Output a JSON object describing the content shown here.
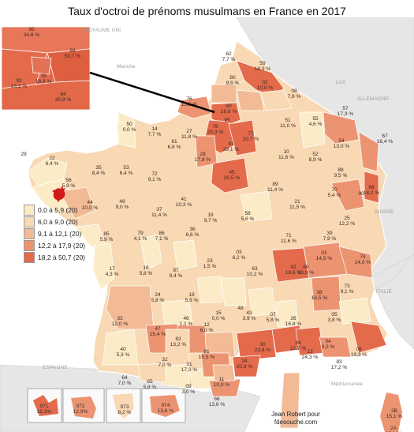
{
  "title": "Taux d'octroi de prénoms musulmans en France en 2017",
  "legend": {
    "items": [
      {
        "label": "0,0 à 5,9 (20)",
        "color": "#fbecc7"
      },
      {
        "label": "6,0 à 9,0 (20)",
        "color": "#f8d9b4"
      },
      {
        "label": "9,1 à 12,1 (20)",
        "color": "#f2bb96"
      },
      {
        "label": "12,2 à 17,9 (20)",
        "color": "#ec9472"
      },
      {
        "label": "18,2 à 50,7 (20)",
        "color": "#e36a4b"
      }
    ]
  },
  "geo_labels": [
    "ROYAUME UNI",
    "Manche",
    "LUX",
    "ALLEMAGNE",
    "SUISSE",
    "ITALIE",
    "ESPAGNE",
    "Méditerranée"
  ],
  "credit": {
    "line1": "Jean Robert pour",
    "line2": "fdesouche.com"
  },
  "departments": [
    {
      "code": "93",
      "val": "50,7 %",
      "cls": 5
    },
    {
      "code": "95",
      "val": "34,6 %",
      "cls": 5
    },
    {
      "code": "92",
      "val": "23,2 %",
      "cls": 5
    },
    {
      "code": "75",
      "val": "18,9 %",
      "cls": 5
    },
    {
      "code": "94",
      "val": "30,9 %",
      "cls": 5
    },
    {
      "code": "62",
      "val": "7,7 %",
      "cls": 2
    },
    {
      "code": "59",
      "val": "18,3 %",
      "cls": 5
    },
    {
      "code": "80",
      "val": "9,5 %",
      "cls": 3
    },
    {
      "code": "02",
      "val": "10,0 %",
      "cls": 3
    },
    {
      "code": "08",
      "val": "7,9 %",
      "cls": 2
    },
    {
      "code": "76",
      "val": "15,5 %",
      "cls": 4
    },
    {
      "code": "60",
      "val": "18,6 %",
      "cls": 5
    },
    {
      "code": "57",
      "val": "17,3 %",
      "cls": 4
    },
    {
      "code": "50",
      "val": "0,0 %",
      "cls": 1
    },
    {
      "code": "14",
      "val": "7,7 %",
      "cls": 2
    },
    {
      "code": "27",
      "val": "11,8 %",
      "cls": 3
    },
    {
      "code": "78",
      "val": "23,3 %",
      "cls": 5
    },
    {
      "code": "95b",
      "val": "",
      "cls": 5
    },
    {
      "code": "77",
      "val": "20,7 %",
      "cls": 5
    },
    {
      "code": "51",
      "val": "11,0 %",
      "cls": 3
    },
    {
      "code": "55",
      "val": "4,6 %",
      "cls": 1
    },
    {
      "code": "54",
      "val": "13,0 %",
      "cls": 4
    },
    {
      "code": "67",
      "val": "16,4 %",
      "cls": 4
    },
    {
      "code": "29",
      "val": "",
      "cls": 1
    },
    {
      "code": "22",
      "val": "6,4 %",
      "cls": 2
    },
    {
      "code": "61",
      "val": "6,8 %",
      "cls": 2
    },
    {
      "code": "28",
      "val": "17,9 %",
      "cls": 4
    },
    {
      "code": "91",
      "val": "29,1 %",
      "cls": 5
    },
    {
      "code": "10",
      "val": "11,6 %",
      "cls": 3
    },
    {
      "code": "52",
      "val": "8,9 %",
      "cls": 2
    },
    {
      "code": "88",
      "val": "9,5 %",
      "cls": 3
    },
    {
      "code": "56",
      "val": "5,9 %",
      "cls": 1
    },
    {
      "code": "35",
      "val": "8,4 %",
      "cls": 2
    },
    {
      "code": "53",
      "val": "6,4 %",
      "cls": 2
    },
    {
      "code": "72",
      "val": "9,1 %",
      "cls": 3
    },
    {
      "code": "45",
      "val": "20,5 %",
      "cls": 5
    },
    {
      "code": "89",
      "val": "11,4 %",
      "cls": 3
    },
    {
      "code": "70",
      "val": "5,4 %",
      "cls": 1
    },
    {
      "code": "68",
      "val": "18,2 %",
      "cls": 5
    },
    {
      "code": "44",
      "val": "10,0 %",
      "cls": 3
    },
    {
      "code": "49",
      "val": "9,0 %",
      "cls": 2
    },
    {
      "code": "37",
      "val": "11,4 %",
      "cls": 3
    },
    {
      "code": "41",
      "val": "10,3 %",
      "cls": 3
    },
    {
      "code": "18",
      "val": "9,7 %",
      "cls": 3
    },
    {
      "code": "58",
      "val": "5,6 %",
      "cls": 1
    },
    {
      "code": "21",
      "val": "11,5 %",
      "cls": 3
    },
    {
      "code": "25",
      "val": "12,2 %",
      "cls": 4
    },
    {
      "code": "90",
      "val": "",
      "cls": 4
    },
    {
      "code": "85",
      "val": "5,9 %",
      "cls": 1
    },
    {
      "code": "79",
      "val": "4,1 %",
      "cls": 1
    },
    {
      "code": "86",
      "val": "7,1 %",
      "cls": 2
    },
    {
      "code": "36",
      "val": "6,6 %",
      "cls": 2
    },
    {
      "code": "71",
      "val": "11,6 %",
      "cls": 3
    },
    {
      "code": "39",
      "val": "7,9 %",
      "cls": 2
    },
    {
      "code": "17",
      "val": "4,3 %",
      "cls": 1
    },
    {
      "code": "16",
      "val": "5,8 %",
      "cls": 1
    },
    {
      "code": "87",
      "val": "9,4 %",
      "cls": 3
    },
    {
      "code": "23",
      "val": "1,5 %",
      "cls": 1
    },
    {
      "code": "03",
      "val": "6,2 %",
      "cls": 2
    },
    {
      "code": "63",
      "val": "10,2 %",
      "cls": 3
    },
    {
      "code": "42",
      "val": "18,6 %",
      "cls": 5
    },
    {
      "code": "69",
      "val": "23,9 %",
      "cls": 5
    },
    {
      "code": "01",
      "val": "14,5 %",
      "cls": 4
    },
    {
      "code": "74",
      "val": "14,0 %",
      "cls": 4
    },
    {
      "code": "73",
      "val": "9,1 %",
      "cls": 3
    },
    {
      "code": "24",
      "val": "5,8 %",
      "cls": 1
    },
    {
      "code": "19",
      "val": "5,9 %",
      "cls": 1
    },
    {
      "code": "15",
      "val": "0,0 %",
      "cls": 1
    },
    {
      "code": "43",
      "val": "3,9 %",
      "cls": 1
    },
    {
      "code": "38",
      "val": "16,5 %",
      "cls": 4
    },
    {
      "code": "33",
      "val": "12,0 %",
      "cls": 3
    },
    {
      "code": "46",
      "val": "1,1 %",
      "cls": 1
    },
    {
      "code": "12",
      "val": "6,0 %",
      "cls": 2
    },
    {
      "code": "48",
      "val": "",
      "cls": 1
    },
    {
      "code": "07",
      "val": "5,8 %",
      "cls": 1
    },
    {
      "code": "26",
      "val": "16,8 %",
      "cls": 4
    },
    {
      "code": "05",
      "val": "3,8 %",
      "cls": 1
    },
    {
      "code": "47",
      "val": "15,4 %",
      "cls": 4
    },
    {
      "code": "82",
      "val": "13,2 %",
      "cls": 4
    },
    {
      "code": "81",
      "val": "10,5 %",
      "cls": 3
    },
    {
      "code": "30",
      "val": "23,8 %",
      "cls": 5
    },
    {
      "code": "84",
      "val": "22,7 %",
      "cls": 5
    },
    {
      "code": "04",
      "val": "9,2 %",
      "cls": 3
    },
    {
      "code": "06",
      "val": "19,3 %",
      "cls": 5
    },
    {
      "code": "40",
      "val": "5,3 %",
      "cls": 1
    },
    {
      "code": "32",
      "val": "7,0 %",
      "cls": 2
    },
    {
      "code": "31",
      "val": "17,3 %",
      "cls": 4
    },
    {
      "code": "34",
      "val": "20,8 %",
      "cls": 5
    },
    {
      "code": "13",
      "val": "24,3 %",
      "cls": 5
    },
    {
      "code": "83",
      "val": "17,2 %",
      "cls": 4
    },
    {
      "code": "64",
      "val": "7,0 %",
      "cls": 2
    },
    {
      "code": "65",
      "val": "5,8 %",
      "cls": 1
    },
    {
      "code": "09",
      "val": "3,0 %",
      "cls": 1
    },
    {
      "code": "11",
      "val": "10,9 %",
      "cls": 3
    },
    {
      "code": "66",
      "val": "13,6 %",
      "cls": 4
    },
    {
      "code": "2B",
      "val": "15,1 %",
      "cls": 4
    },
    {
      "code": "2A",
      "val": "15,1 %",
      "cls": 4
    },
    {
      "code": "971",
      "val": "18,3%",
      "cls": 5
    },
    {
      "code": "972",
      "val": "12,9%",
      "cls": 4
    },
    {
      "code": "973",
      "val": "8,2 %",
      "cls": 2
    },
    {
      "code": "974",
      "val": "13,6 %",
      "cls": 4
    }
  ]
}
